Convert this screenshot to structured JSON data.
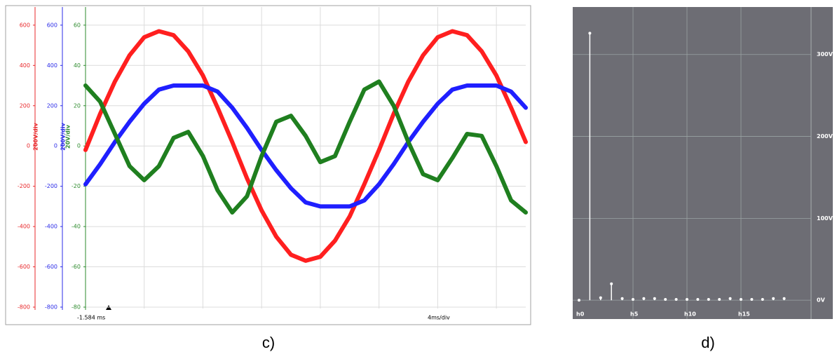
{
  "chart_data": [
    {
      "type": "line",
      "caption": "c)",
      "annotations": [
        "-1.584 ms",
        "4ms/div"
      ],
      "x": [
        0,
        1,
        2,
        3,
        4,
        5,
        6,
        7,
        8,
        9,
        10,
        11,
        12,
        13,
        14,
        15,
        16,
        17,
        18,
        19,
        20,
        21,
        22,
        23,
        24,
        25,
        26,
        27,
        28,
        29,
        30
      ],
      "xlim": [
        0,
        30
      ],
      "xticks": [
        0,
        4,
        8,
        12,
        16,
        20,
        24,
        28
      ],
      "grid": true,
      "ylim": [
        -800,
        690
      ],
      "yticks": [
        600,
        400,
        200,
        0,
        -200,
        -400,
        -600,
        -800
      ],
      "ylabel": "200V/div",
      "ycolor": "#e8282b",
      "y2lim": [
        -800,
        690
      ],
      "y2ticks": [
        600,
        400,
        200,
        0,
        -200,
        -400,
        -600,
        -800
      ],
      "y2label": "200V/div",
      "y2color": "#2b2be8",
      "y3lim": [
        -80,
        69
      ],
      "y3ticks": [
        60,
        40,
        20,
        0,
        -20,
        -40,
        -60,
        -80
      ],
      "y3label": "20V/div",
      "y3color": "#2e8b2e",
      "series": [
        {
          "color": "#ff1f1f",
          "axis": "y",
          "values": [
            -20,
            160,
            320,
            450,
            540,
            570,
            550,
            470,
            350,
            190,
            20,
            -160,
            -320,
            -450,
            -540,
            -570,
            -550,
            -470,
            -350,
            -190,
            -20,
            160,
            320,
            450,
            540,
            570,
            550,
            470,
            350,
            190,
            20
          ]
        },
        {
          "color": "#1f1fff",
          "axis": "y2",
          "values": [
            -190,
            -90,
            20,
            120,
            210,
            280,
            300,
            300,
            300,
            270,
            190,
            90,
            -20,
            -120,
            -210,
            -280,
            -300,
            -300,
            -300,
            -270,
            -190,
            -90,
            20,
            120,
            210,
            280,
            300,
            300,
            300,
            270,
            190
          ]
        },
        {
          "color": "#1f7f1f",
          "axis": "y3",
          "values": [
            30,
            22,
            6,
            -10,
            -17,
            -10,
            4,
            7,
            -5,
            -22,
            -33,
            -25,
            -5,
            12,
            15,
            5,
            -8,
            -5,
            12,
            28,
            32,
            20,
            2,
            -14,
            -17,
            -6,
            6,
            5,
            -10,
            -27,
            -33
          ]
        }
      ]
    },
    {
      "type": "stem",
      "caption": "d)",
      "color": "#ffffff",
      "background": "#6d6d74",
      "categories": [
        "h0",
        null,
        null,
        null,
        null,
        "h5",
        null,
        null,
        null,
        null,
        "h10",
        null,
        null,
        null,
        null,
        "h15",
        null,
        null,
        null,
        null
      ],
      "values": [
        0,
        326,
        3,
        20,
        2,
        1,
        2,
        2,
        1,
        1,
        1,
        1,
        1,
        1,
        2,
        1,
        1,
        1,
        2,
        2
      ],
      "ylim": [
        -23,
        358
      ],
      "grid": true,
      "yticks": [
        {
          "value": 0,
          "label": "0V"
        },
        {
          "value": 100,
          "label": "100V"
        },
        {
          "value": 200,
          "label": "200V"
        },
        {
          "value": 300,
          "label": "300V"
        }
      ]
    }
  ]
}
